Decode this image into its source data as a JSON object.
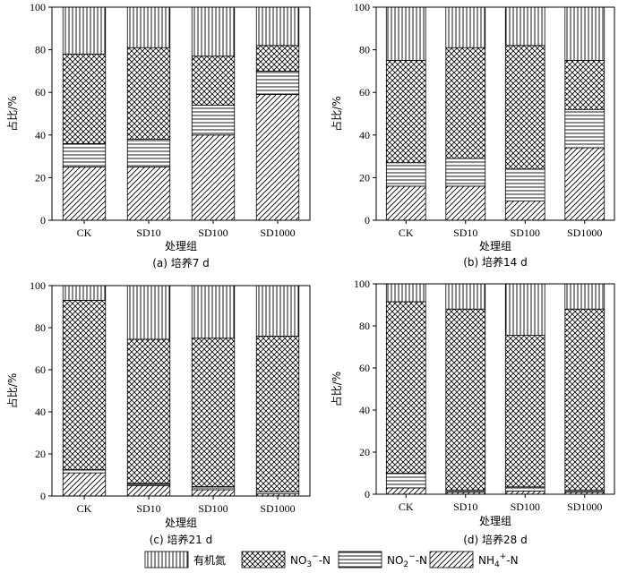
{
  "chart_data": [
    {
      "type": "bar",
      "stacked": true,
      "caption": "(a) 培养7 d",
      "xlabel": "处理组",
      "ylabel": "占比/%",
      "ylim": [
        0,
        100
      ],
      "yticks": [
        0,
        20,
        40,
        60,
        80,
        100
      ],
      "categories": [
        "CK",
        "SD10",
        "SD100",
        "SD1000"
      ],
      "series": [
        {
          "name": "NH4+-N",
          "values": [
            25,
            25,
            40,
            59
          ]
        },
        {
          "name": "NO2−-N",
          "values": [
            11,
            13,
            14,
            11
          ]
        },
        {
          "name": "NO3−-N",
          "values": [
            42,
            43,
            23,
            12
          ]
        },
        {
          "name": "有机氮",
          "values": [
            22,
            19,
            23,
            18
          ]
        }
      ]
    },
    {
      "type": "bar",
      "stacked": true,
      "caption": "(b) 培养14 d",
      "xlabel": "处理组",
      "ylabel": "占比/%",
      "ylim": [
        0,
        100
      ],
      "yticks": [
        0,
        20,
        40,
        60,
        80,
        100
      ],
      "categories": [
        "CK",
        "SD10",
        "SD100",
        "SD1000"
      ],
      "series": [
        {
          "name": "NH4+-N",
          "values": [
            16,
            16,
            9,
            34
          ]
        },
        {
          "name": "NO2−-N",
          "values": [
            11,
            13,
            15,
            18
          ]
        },
        {
          "name": "NO3−-N",
          "values": [
            48,
            52,
            58,
            23
          ]
        },
        {
          "name": "有机氮",
          "values": [
            25,
            19,
            18,
            25
          ]
        }
      ]
    },
    {
      "type": "bar",
      "stacked": true,
      "caption": "(c) 培养21 d",
      "xlabel": "处理组",
      "ylabel": "占比/%",
      "ylim": [
        0,
        100
      ],
      "yticks": [
        0,
        20,
        40,
        60,
        80,
        100
      ],
      "categories": [
        "CK",
        "SD10",
        "SD100",
        "SD1000"
      ],
      "series": [
        {
          "name": "NH4+-N",
          "values": [
            11,
            5,
            3,
            1
          ]
        },
        {
          "name": "NO2−-N",
          "values": [
            1.5,
            1,
            1.5,
            1
          ]
        },
        {
          "name": "NO3−-N",
          "values": [
            80.5,
            68.5,
            70.5,
            74
          ]
        },
        {
          "name": "有机氮",
          "values": [
            7,
            25.5,
            25,
            24
          ]
        }
      ]
    },
    {
      "type": "bar",
      "stacked": true,
      "caption": "(d) 培养28 d",
      "xlabel": "处理组",
      "ylabel": "占比/%",
      "ylim": [
        0,
        100
      ],
      "yticks": [
        0,
        20,
        40,
        60,
        80,
        100
      ],
      "categories": [
        "CK",
        "SD10",
        "SD100",
        "SD1000"
      ],
      "series": [
        {
          "name": "NH4+-N",
          "values": [
            3,
            1,
            1.5,
            1
          ]
        },
        {
          "name": "NO2−-N",
          "values": [
            7,
            1,
            2,
            1
          ]
        },
        {
          "name": "NO3−-N",
          "values": [
            81.5,
            86,
            72,
            86
          ]
        },
        {
          "name": "有机氮",
          "values": [
            8.5,
            12,
            24.5,
            12
          ]
        }
      ]
    }
  ],
  "legend": {
    "placement": "bottom",
    "items": [
      {
        "pattern": "vertical",
        "label": "有机氮"
      },
      {
        "pattern": "crosshatch",
        "label": "NO3−-N",
        "base": "NO",
        "sub": "3",
        "sup": "−",
        "tail": "-N"
      },
      {
        "pattern": "horizontal",
        "label": "NO2−-N",
        "base": "NO",
        "sub": "2",
        "sup": "−",
        "tail": "-N"
      },
      {
        "pattern": "diagonal",
        "label": "NH4+-N",
        "base": "NH",
        "sub": "4",
        "sup": "+",
        "tail": "-N"
      }
    ]
  }
}
